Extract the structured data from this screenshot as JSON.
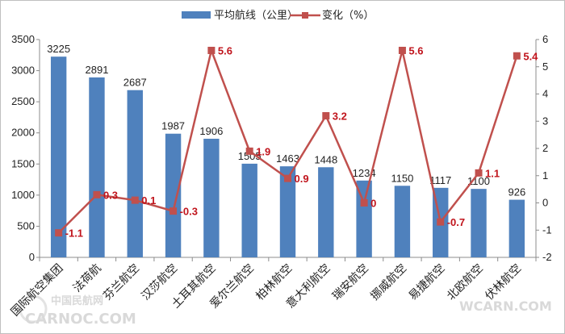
{
  "chart_data": {
    "type": "bar",
    "categories": [
      "国际航空集团",
      "法荷航",
      "芬兰航空",
      "汉莎航空",
      "土耳其航空",
      "爱尔兰航空",
      "柏林航空",
      "意大利航空",
      "瑞安航空",
      "挪威航空",
      "易捷航空",
      "北欧航空",
      "伏林航空"
    ],
    "series": [
      {
        "name": "平均航线（公里）",
        "type": "bar",
        "axis": "left",
        "color": "#4f81bd",
        "values": [
          3225,
          2891,
          2687,
          1987,
          1906,
          1505,
          1463,
          1448,
          1234,
          1150,
          1117,
          1100,
          926
        ],
        "labels": [
          "3225",
          "2891",
          "2687",
          "1987",
          "1906",
          "1505",
          "1463",
          "1448",
          "1234",
          "1150",
          "1117",
          "1100",
          "926"
        ]
      },
      {
        "name": "变化（%）",
        "type": "line",
        "axis": "right",
        "color": "#c0504d",
        "values": [
          -1.1,
          0.3,
          0.1,
          -0.3,
          5.6,
          1.9,
          0.9,
          3.2,
          0,
          5.6,
          -0.7,
          1.1,
          5.4
        ],
        "labels": [
          "-1.1",
          "0.3",
          "0.1",
          "-0.3",
          "5.6",
          "1.9",
          "0.9",
          "3.2",
          "0",
          "5.6",
          "-0.7",
          "1.1",
          "5.4"
        ]
      }
    ],
    "y_left": {
      "min": 0,
      "max": 3500,
      "step": 500
    },
    "y_right": {
      "min": -2,
      "max": 6,
      "step": 1
    },
    "grid": false,
    "legend_position": "top-center"
  },
  "watermarks": [
    "中国民航网",
    "CARNOC.COM",
    "WCARN.COM"
  ]
}
